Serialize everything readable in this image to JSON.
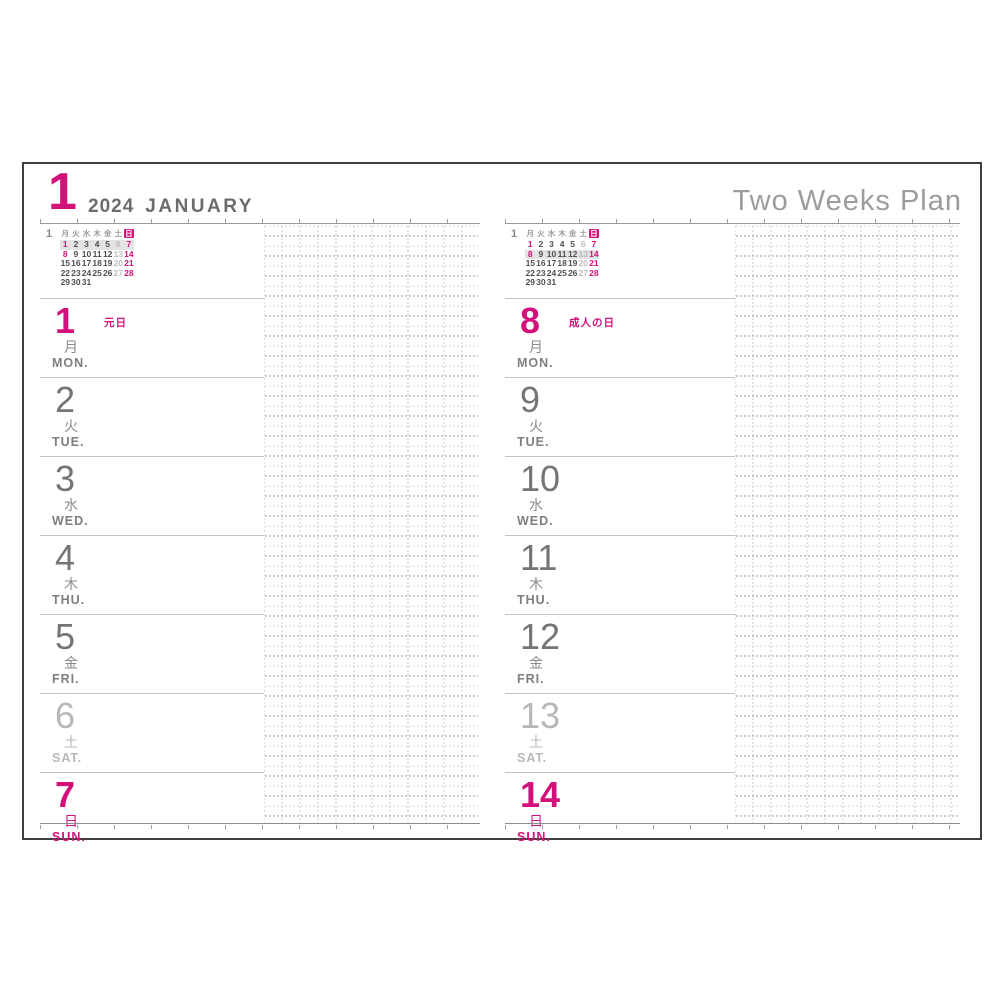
{
  "colors": {
    "accent": "#d4107a",
    "day_gray": "#757575",
    "saturday_gray": "#b8b8b8",
    "title_gray": "#9c9c9c"
  },
  "header": {
    "month_number": "1",
    "year": "2024",
    "month_name": "JANUARY",
    "plan_title": "Two Weeks Plan"
  },
  "mini_calendar": {
    "month_label": "1",
    "weekday_headers": [
      "月",
      "火",
      "水",
      "木",
      "金",
      "土",
      "日"
    ],
    "weeks": [
      [
        "1",
        "2",
        "3",
        "4",
        "5",
        "6",
        "7"
      ],
      [
        "8",
        "9",
        "10",
        "11",
        "12",
        "13",
        "14"
      ],
      [
        "15",
        "16",
        "17",
        "18",
        "19",
        "20",
        "21"
      ],
      [
        "22",
        "23",
        "24",
        "25",
        "26",
        "27",
        "28"
      ],
      [
        "29",
        "30",
        "31",
        "",
        "",
        "",
        ""
      ]
    ],
    "holiday_dates": [
      "1",
      "8"
    ]
  },
  "pages": [
    {
      "id": "left",
      "highlight_week": 0,
      "days": [
        {
          "num": "1",
          "jp": "月",
          "en": "MON.",
          "holiday": "元日",
          "type": "holiday"
        },
        {
          "num": "2",
          "jp": "火",
          "en": "TUE.",
          "type": "weekday"
        },
        {
          "num": "3",
          "jp": "水",
          "en": "WED.",
          "type": "weekday"
        },
        {
          "num": "4",
          "jp": "木",
          "en": "THU.",
          "type": "weekday"
        },
        {
          "num": "5",
          "jp": "金",
          "en": "FRI.",
          "type": "weekday"
        },
        {
          "num": "6",
          "jp": "土",
          "en": "SAT.",
          "type": "saturday"
        },
        {
          "num": "7",
          "jp": "日",
          "en": "SUN.",
          "type": "sunday"
        }
      ]
    },
    {
      "id": "right",
      "highlight_week": 1,
      "days": [
        {
          "num": "8",
          "jp": "月",
          "en": "MON.",
          "holiday": "成人の日",
          "type": "holiday"
        },
        {
          "num": "9",
          "jp": "火",
          "en": "TUE.",
          "type": "weekday"
        },
        {
          "num": "10",
          "jp": "水",
          "en": "WED.",
          "type": "weekday"
        },
        {
          "num": "11",
          "jp": "木",
          "en": "THU.",
          "type": "weekday"
        },
        {
          "num": "12",
          "jp": "金",
          "en": "FRI.",
          "type": "weekday"
        },
        {
          "num": "13",
          "jp": "土",
          "en": "SAT.",
          "type": "saturday"
        },
        {
          "num": "14",
          "jp": "日",
          "en": "SUN.",
          "type": "sunday"
        }
      ]
    }
  ]
}
